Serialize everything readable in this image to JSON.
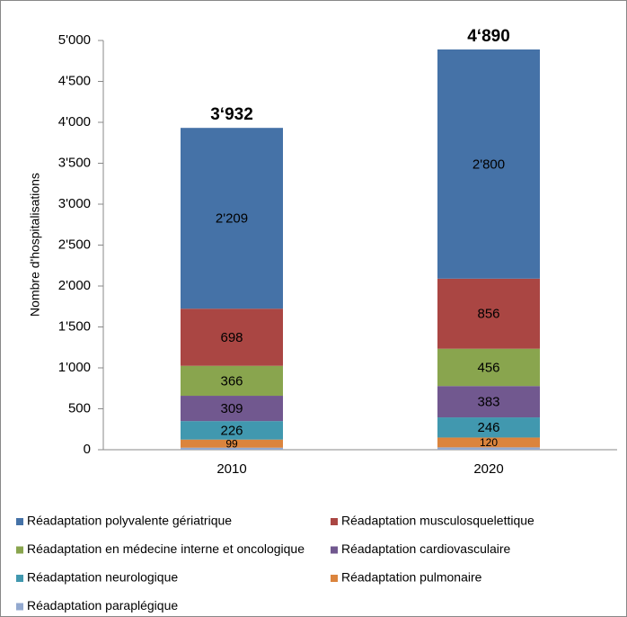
{
  "chart_data": {
    "type": "stacked_bar",
    "y_label": "Nombre d'hospitalisations",
    "categories": [
      "2010",
      "2020"
    ],
    "ylim": [
      0,
      5000
    ],
    "yticks": [
      0,
      500,
      {
        "value": 1000,
        "label": "1'000"
      },
      {
        "value": 1500,
        "label": "1'500"
      },
      {
        "value": 2000,
        "label": "2'000"
      },
      {
        "value": 2500,
        "label": "2'500"
      },
      {
        "value": 3000,
        "label": "3'000"
      },
      {
        "value": 3500,
        "label": "3'500"
      },
      {
        "value": 4000,
        "label": "4'000"
      },
      {
        "value": 4500,
        "label": "4'500"
      },
      {
        "value": 5000,
        "label": "5'000"
      }
    ],
    "series": [
      {
        "name": "Réadaptation paraplégique",
        "color": "#93a9cf",
        "values": [
          25,
          29
        ]
      },
      {
        "name": "Réadaptation pulmonaire",
        "color": "#db843d",
        "values": [
          99,
          120
        ],
        "label_color": "#000000"
      },
      {
        "name": "Réadaptation neurologique",
        "color": "#4198af",
        "values": [
          226,
          246
        ],
        "label_color": "#000000"
      },
      {
        "name": "Réadaptation cardiovasculaire",
        "color": "#71588f",
        "values": [
          309,
          383
        ],
        "label_color": "#000000"
      },
      {
        "name": "Réadaptation en médecine interne et oncologique",
        "color": "#89a54e",
        "values": [
          366,
          456
        ],
        "label_color": "#000000"
      },
      {
        "name": "Réadaptation musculosquelettique",
        "color": "#aa4643",
        "values": [
          698,
          856
        ],
        "label_color": "#ffffff"
      },
      {
        "name": "Réadaptation polyvalente gériatrique",
        "color": "#4572a7",
        "values": [
          2209,
          2800
        ],
        "value_labels": [
          "2'209",
          "2'800"
        ],
        "label_color": "#ffffff"
      }
    ],
    "totals": {
      "values": [
        3932,
        4890
      ],
      "value_labels": [
        "3‘932",
        "4‘890"
      ]
    }
  }
}
